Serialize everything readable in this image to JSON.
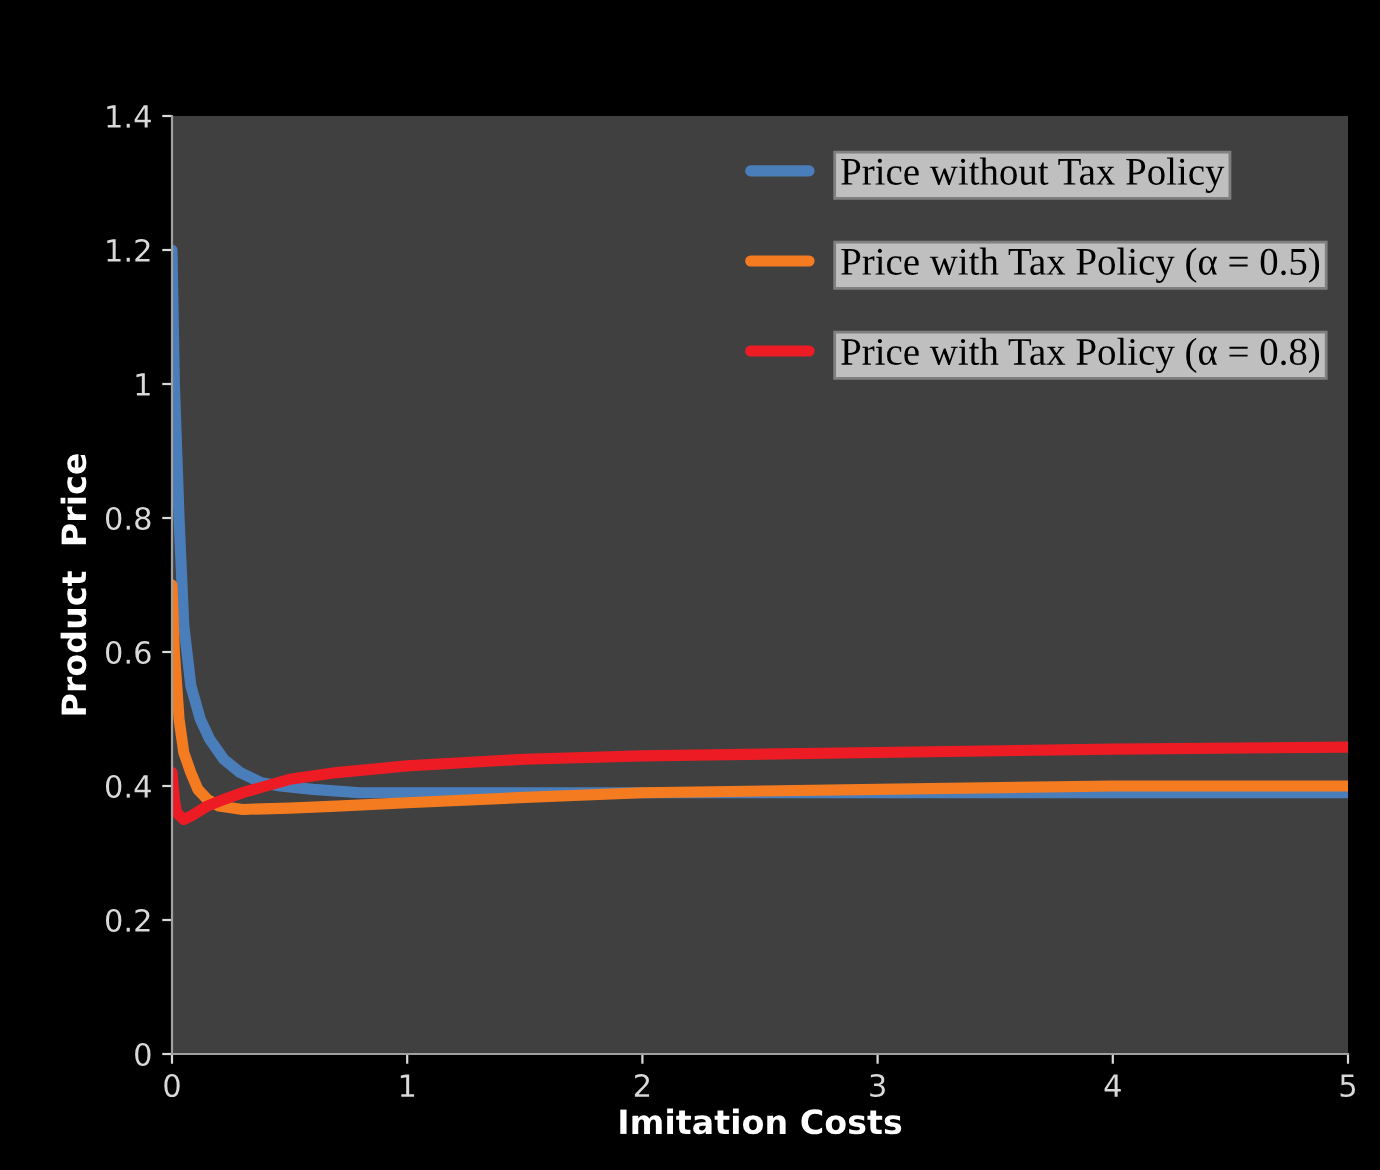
{
  "chart_data": {
    "type": "line",
    "xlabel": "Imitation Costs",
    "ylabel": "Product  Price",
    "xlim": [
      0,
      5
    ],
    "ylim": [
      0,
      1.4
    ],
    "xticks": [
      0,
      1,
      2,
      3,
      4,
      5
    ],
    "yticks": [
      0,
      0.2,
      0.4,
      0.6,
      0.8,
      1,
      1.2,
      1.4
    ],
    "grid": false,
    "legend": "top right",
    "marker": "none",
    "line_style": "solid",
    "series": [
      {
        "name": "Price without Tax Policy",
        "color": "#4a7ebb",
        "x": [
          0,
          0.01,
          0.03,
          0.05,
          0.08,
          0.12,
          0.16,
          0.22,
          0.29,
          0.38,
          0.46,
          0.6,
          0.8,
          1,
          1.5,
          3,
          4,
          5
        ],
        "values": [
          1.2,
          1.0,
          0.8,
          0.64,
          0.55,
          0.5,
          0.47,
          0.44,
          0.42,
          0.405,
          0.4,
          0.395,
          0.39,
          0.39,
          0.39,
          0.39,
          0.39,
          0.39
        ]
      },
      {
        "name": "Price with Tax Policy (α = 0.5)",
        "color": "#f47b20",
        "x": [
          0,
          0.01,
          0.03,
          0.05,
          0.08,
          0.11,
          0.15,
          0.2,
          0.3,
          0.5,
          0.7,
          1,
          1.5,
          2,
          3,
          4,
          5
        ],
        "values": [
          0.7,
          0.6,
          0.5,
          0.45,
          0.42,
          0.395,
          0.38,
          0.37,
          0.365,
          0.367,
          0.37,
          0.375,
          0.383,
          0.39,
          0.395,
          0.4,
          0.4
        ]
      },
      {
        "name": "Price with Tax Policy (α = 0.8)",
        "color": "#ed1c24",
        "x": [
          0,
          0.01,
          0.02,
          0.05,
          0.08,
          0.15,
          0.22,
          0.3,
          0.4,
          0.5,
          0.7,
          1,
          1.5,
          2,
          3,
          4,
          5
        ],
        "values": [
          0.42,
          0.38,
          0.36,
          0.35,
          0.355,
          0.37,
          0.38,
          0.39,
          0.4,
          0.41,
          0.42,
          0.43,
          0.44,
          0.445,
          0.45,
          0.455,
          0.458
        ]
      }
    ]
  }
}
